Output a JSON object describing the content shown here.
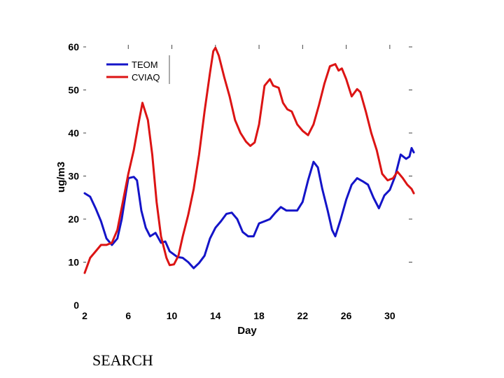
{
  "chart_data": {
    "type": "line",
    "title": "",
    "xlabel": "Day",
    "ylabel": "ug/m3",
    "xlim": [
      2,
      32
    ],
    "ylim": [
      0,
      60
    ],
    "x_ticks": [
      2,
      6,
      10,
      14,
      18,
      22,
      26,
      30
    ],
    "y_ticks": [
      0,
      10,
      20,
      30,
      40,
      50,
      60
    ],
    "grid": false,
    "legend_position": "top-left",
    "series": [
      {
        "name": "TEOM",
        "color": "#1414c8",
        "points": [
          [
            2.0,
            26.0
          ],
          [
            2.5,
            25.2
          ],
          [
            3.0,
            22.5
          ],
          [
            3.5,
            19.5
          ],
          [
            4.0,
            15.5
          ],
          [
            4.5,
            14.0
          ],
          [
            5.0,
            15.5
          ],
          [
            5.4,
            20.0
          ],
          [
            5.8,
            26.5
          ],
          [
            6.0,
            29.5
          ],
          [
            6.5,
            29.8
          ],
          [
            6.8,
            29.0
          ],
          [
            7.2,
            22.0
          ],
          [
            7.6,
            18.0
          ],
          [
            8.0,
            16.0
          ],
          [
            8.5,
            16.8
          ],
          [
            9.0,
            14.5
          ],
          [
            9.4,
            14.8
          ],
          [
            9.8,
            12.5
          ],
          [
            10.5,
            11.2
          ],
          [
            11.0,
            11.0
          ],
          [
            11.5,
            10.0
          ],
          [
            12.0,
            8.6
          ],
          [
            12.5,
            9.8
          ],
          [
            13.0,
            11.5
          ],
          [
            13.5,
            15.5
          ],
          [
            14.0,
            18.0
          ],
          [
            14.5,
            19.5
          ],
          [
            15.0,
            21.2
          ],
          [
            15.5,
            21.5
          ],
          [
            16.0,
            20.0
          ],
          [
            16.5,
            17.0
          ],
          [
            17.0,
            16.0
          ],
          [
            17.5,
            16.0
          ],
          [
            18.0,
            19.0
          ],
          [
            18.5,
            19.5
          ],
          [
            19.0,
            20.0
          ],
          [
            19.5,
            21.5
          ],
          [
            20.0,
            22.8
          ],
          [
            20.5,
            22.0
          ],
          [
            21.0,
            22.0
          ],
          [
            21.5,
            22.0
          ],
          [
            22.0,
            24.0
          ],
          [
            22.5,
            29.0
          ],
          [
            23.0,
            33.3
          ],
          [
            23.4,
            32.0
          ],
          [
            23.8,
            27.0
          ],
          [
            24.3,
            22.0
          ],
          [
            24.7,
            17.5
          ],
          [
            25.0,
            16.0
          ],
          [
            25.5,
            20.0
          ],
          [
            26.0,
            24.5
          ],
          [
            26.5,
            28.0
          ],
          [
            27.0,
            29.5
          ],
          [
            27.5,
            28.8
          ],
          [
            28.0,
            28.0
          ],
          [
            28.5,
            25.0
          ],
          [
            29.0,
            22.5
          ],
          [
            29.5,
            25.5
          ],
          [
            30.0,
            26.8
          ],
          [
            30.5,
            30.0
          ],
          [
            31.0,
            35.0
          ],
          [
            31.5,
            34.0
          ],
          [
            31.8,
            34.5
          ],
          [
            32.0,
            36.5
          ],
          [
            32.2,
            35.5
          ]
        ]
      },
      {
        "name": "CVIAQ",
        "color": "#dc1414",
        "points": [
          [
            2.0,
            7.5
          ],
          [
            2.5,
            11.0
          ],
          [
            3.0,
            12.5
          ],
          [
            3.5,
            14.0
          ],
          [
            4.0,
            14.0
          ],
          [
            4.5,
            14.5
          ],
          [
            5.0,
            17.5
          ],
          [
            5.5,
            24.0
          ],
          [
            6.0,
            30.5
          ],
          [
            6.5,
            36.0
          ],
          [
            7.0,
            43.0
          ],
          [
            7.3,
            47.0
          ],
          [
            7.8,
            43.0
          ],
          [
            8.2,
            35.0
          ],
          [
            8.6,
            24.0
          ],
          [
            9.0,
            16.0
          ],
          [
            9.5,
            11.0
          ],
          [
            9.8,
            9.3
          ],
          [
            10.2,
            9.5
          ],
          [
            10.6,
            11.5
          ],
          [
            11.0,
            16.0
          ],
          [
            11.5,
            21.0
          ],
          [
            12.0,
            27.0
          ],
          [
            12.5,
            35.0
          ],
          [
            13.0,
            45.0
          ],
          [
            13.5,
            54.0
          ],
          [
            13.8,
            59.0
          ],
          [
            14.0,
            59.8
          ],
          [
            14.3,
            58.0
          ],
          [
            14.8,
            53.0
          ],
          [
            15.3,
            48.5
          ],
          [
            15.8,
            43.0
          ],
          [
            16.3,
            40.0
          ],
          [
            16.8,
            38.0
          ],
          [
            17.2,
            37.0
          ],
          [
            17.6,
            37.8
          ],
          [
            18.0,
            42.0
          ],
          [
            18.5,
            51.0
          ],
          [
            19.0,
            52.5
          ],
          [
            19.3,
            51.0
          ],
          [
            19.8,
            50.5
          ],
          [
            20.2,
            47.0
          ],
          [
            20.6,
            45.5
          ],
          [
            21.0,
            45.0
          ],
          [
            21.5,
            42.0
          ],
          [
            22.0,
            40.5
          ],
          [
            22.5,
            39.5
          ],
          [
            23.0,
            42.0
          ],
          [
            23.5,
            46.5
          ],
          [
            24.0,
            51.5
          ],
          [
            24.5,
            55.5
          ],
          [
            25.0,
            56.0
          ],
          [
            25.3,
            54.5
          ],
          [
            25.6,
            55.0
          ],
          [
            26.0,
            52.5
          ],
          [
            26.5,
            48.5
          ],
          [
            27.0,
            50.2
          ],
          [
            27.3,
            49.5
          ],
          [
            27.8,
            45.0
          ],
          [
            28.3,
            40.0
          ],
          [
            28.8,
            36.0
          ],
          [
            29.3,
            30.5
          ],
          [
            29.8,
            29.0
          ],
          [
            30.3,
            29.5
          ],
          [
            30.7,
            31.0
          ],
          [
            31.2,
            29.5
          ],
          [
            31.6,
            28.0
          ],
          [
            32.0,
            27.0
          ],
          [
            32.2,
            26.0
          ]
        ]
      }
    ]
  },
  "footer": {
    "text": "SEARCH"
  }
}
